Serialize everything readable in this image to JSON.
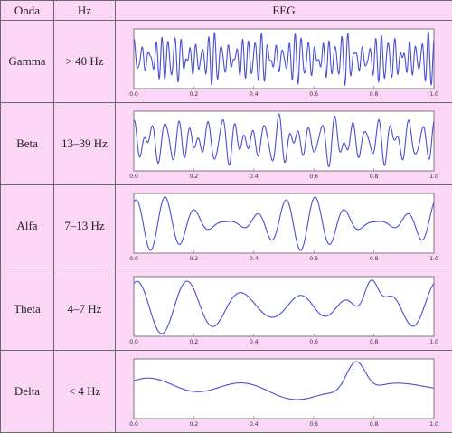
{
  "headers": {
    "wave": "Onda",
    "freq": "Hz",
    "eeg": "EEG"
  },
  "x_ticks": [
    "0.0",
    "0.2",
    "0.4",
    "0.6",
    "0.8",
    "1.0"
  ],
  "colors": {
    "cell_bg": "#fbd6f6",
    "trace": "#4b4ed0",
    "border": "#6a6a6a"
  },
  "rows": [
    {
      "name": "Gamma",
      "freq": "> 40 Hz",
      "signal": {
        "components": [
          {
            "freq": 45,
            "amp": 0.55,
            "phase": 0.3
          },
          {
            "freq": 52,
            "amp": 0.35,
            "phase": 1.7
          },
          {
            "freq": 63,
            "amp": 0.25,
            "phase": 2.4
          },
          {
            "freq": 38,
            "amp": 0.15,
            "phase": 0.9
          }
        ]
      }
    },
    {
      "name": "Beta",
      "freq": "13–39 Hz",
      "signal": {
        "components": [
          {
            "freq": 21,
            "amp": 0.55,
            "phase": 0.5
          },
          {
            "freq": 27,
            "amp": 0.35,
            "phase": 2.0
          },
          {
            "freq": 33,
            "amp": 0.3,
            "phase": 1.1
          },
          {
            "freq": 16,
            "amp": 0.2,
            "phase": 3.0
          }
        ]
      }
    },
    {
      "name": "Alfa",
      "freq": "7–13 Hz",
      "signal": {
        "components": [
          {
            "freq": 10,
            "amp": 0.55,
            "phase": 1.2
          },
          {
            "freq": 12,
            "amp": 0.3,
            "phase": 0.4
          },
          {
            "freq": 8,
            "amp": 0.2,
            "phase": 2.2
          }
        ]
      }
    },
    {
      "name": "Theta",
      "freq": "4–7 Hz",
      "signal": {
        "components": [
          {
            "freq": 6,
            "amp": 0.3,
            "phase": 0.8
          },
          {
            "freq": 5,
            "amp": 0.2,
            "phase": 2.1
          },
          {
            "freq": 7,
            "amp": 0.15,
            "phase": 1.0
          }
        ],
        "bursts": [
          {
            "center": 0.79,
            "width": 0.045,
            "amp": 0.75
          }
        ]
      }
    },
    {
      "name": "Delta",
      "freq": "< 4 Hz",
      "signal": {
        "components": [
          {
            "freq": 1.3,
            "amp": 0.2,
            "phase": 0.4
          },
          {
            "freq": 2.6,
            "amp": 0.18,
            "phase": 1.4
          },
          {
            "freq": 3.4,
            "amp": 0.1,
            "phase": 0.3
          }
        ],
        "bursts": [
          {
            "center": 0.74,
            "width": 0.06,
            "amp": 0.85
          }
        ]
      }
    }
  ]
}
